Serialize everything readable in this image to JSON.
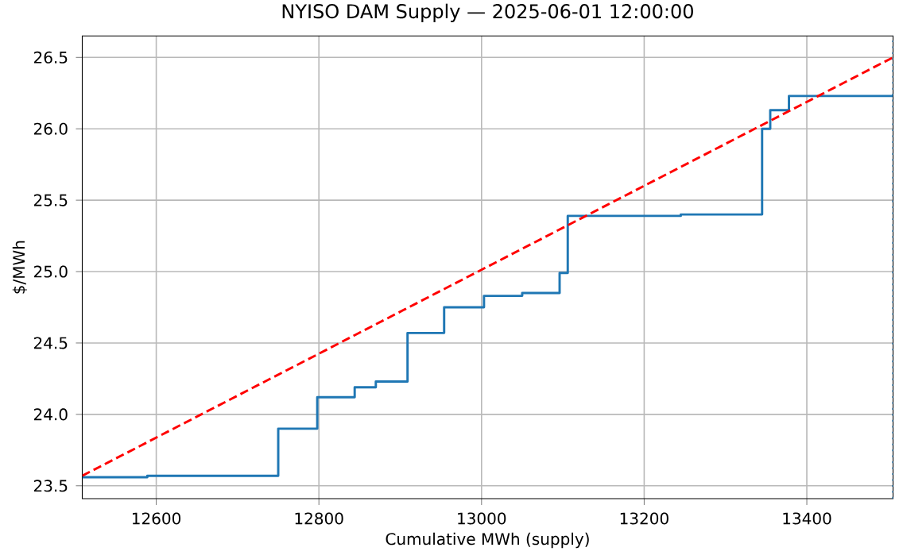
{
  "chart_data": {
    "type": "step",
    "title": "NYISO DAM Supply — 2025-06-01 12:00:00",
    "xlabel": "Cumulative MWh (supply)",
    "ylabel": "$/MWh",
    "xlim": [
      12509,
      13506
    ],
    "ylim": [
      23.41,
      26.65
    ],
    "xticks": [
      12600,
      12800,
      13000,
      13200,
      13400
    ],
    "yticks": [
      {
        "value": 23.5,
        "label": "23.5"
      },
      {
        "value": 24.0,
        "label": "24.0"
      },
      {
        "value": 24.5,
        "label": "24.5"
      },
      {
        "value": 25.0,
        "label": "25.0"
      },
      {
        "value": 25.5,
        "label": "25.5"
      },
      {
        "value": 26.0,
        "label": "26.0"
      },
      {
        "value": 26.5,
        "label": "26.5"
      }
    ],
    "grid": true,
    "series": [
      {
        "color": "#1f77b4",
        "x": [
          12509,
          12589,
          12750,
          12798,
          12844,
          12870,
          12909,
          12954,
          13003,
          13050,
          13096,
          13106,
          13245,
          13345,
          13355,
          13378,
          13506
        ],
        "values": [
          23.56,
          23.57,
          23.9,
          24.12,
          24.19,
          24.23,
          24.57,
          24.75,
          24.83,
          24.85,
          24.99,
          25.39,
          25.4,
          26.0,
          26.13,
          26.23,
          26.23
        ]
      },
      {
        "type": "line",
        "color": "#ff0000",
        "line_style": "dashed",
        "x": [
          12509,
          13506
        ],
        "values": [
          23.57,
          26.5
        ]
      }
    ],
    "ref_lines": [
      {
        "axis": "x",
        "value": 13506,
        "color": "#1f77b4",
        "line_style": "dotted"
      }
    ]
  }
}
